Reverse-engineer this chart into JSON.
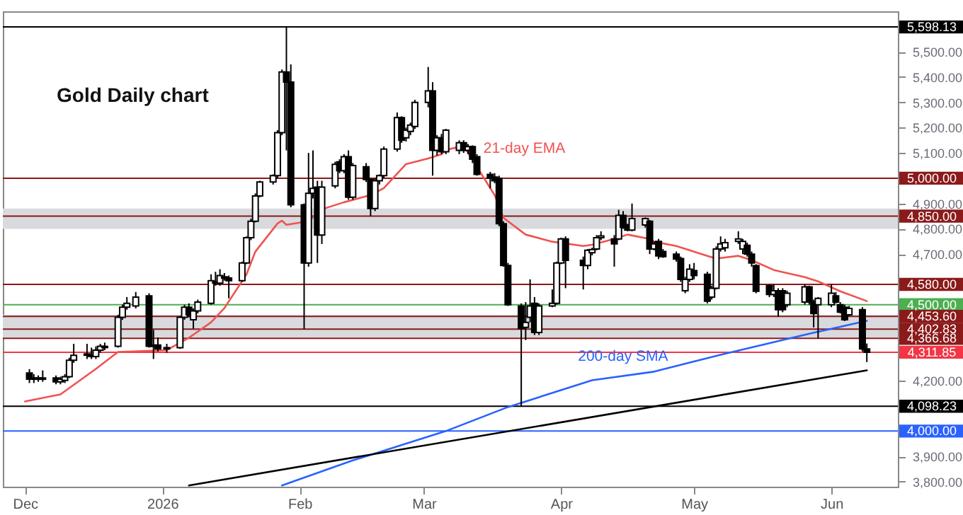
{
  "chart_data": {
    "type": "candlestick",
    "title": "Gold Daily chart",
    "xlim": [
      "2025-11-26",
      "2026-06-16"
    ],
    "xticks": [
      {
        "value": "2025-12-01",
        "label": "Dec"
      },
      {
        "value": "2026-01-01",
        "label": "2026"
      },
      {
        "value": "2026-02-01",
        "label": "Feb"
      },
      {
        "value": "2026-03-01",
        "label": "Mar"
      },
      {
        "value": "2026-04-01",
        "label": "Apr"
      },
      {
        "value": "2026-05-01",
        "label": "May"
      },
      {
        "value": "2026-06-01",
        "label": "Jun"
      }
    ],
    "ylim": [
      3780,
      5660
    ],
    "yticks": [
      {
        "value": 3800,
        "label": "3,800.00"
      },
      {
        "value": 3900,
        "label": "3,900.00"
      },
      {
        "value": 4200,
        "label": "4,200.00"
      },
      {
        "value": 4700,
        "label": "4,700.00"
      },
      {
        "value": 4800,
        "label": "4,800.00"
      },
      {
        "value": 4900,
        "label": "4,900.00"
      },
      {
        "value": 5100,
        "label": "5,100.00"
      },
      {
        "value": 5200,
        "label": "5,200.00"
      },
      {
        "value": 5300,
        "label": "5,300.00"
      },
      {
        "value": 5400,
        "label": "5,400.00"
      },
      {
        "value": 5500,
        "label": "5,500.00"
      }
    ],
    "x": [
      "2025-12-02",
      "2025-12-03",
      "2025-12-04",
      "2025-12-05",
      "2025-12-08",
      "2025-12-09",
      "2025-12-10",
      "2025-12-11",
      "2025-12-12",
      "2025-12-15",
      "2025-12-16",
      "2025-12-17",
      "2025-12-18",
      "2025-12-19",
      "2025-12-22",
      "2025-12-23",
      "2025-12-24",
      "2025-12-26",
      "2025-12-29",
      "2025-12-30",
      "2025-12-31",
      "2026-01-02",
      "2026-01-05",
      "2026-01-06",
      "2026-01-07",
      "2026-01-08",
      "2026-01-09",
      "2026-01-12",
      "2026-01-13",
      "2026-01-14",
      "2026-01-15",
      "2026-01-16",
      "2026-01-19",
      "2026-01-20",
      "2026-01-21",
      "2026-01-22",
      "2026-01-23",
      "2026-01-26",
      "2026-01-27",
      "2026-01-28",
      "2026-01-29",
      "2026-01-30",
      "2026-02-02",
      "2026-02-03",
      "2026-02-04",
      "2026-02-05",
      "2026-02-06",
      "2026-02-09",
      "2026-02-10",
      "2026-02-11",
      "2026-02-12",
      "2026-02-13",
      "2026-02-16",
      "2026-02-17",
      "2026-02-18",
      "2026-02-19",
      "2026-02-20",
      "2026-02-23",
      "2026-02-24",
      "2026-02-25",
      "2026-02-26",
      "2026-02-27",
      "2026-03-02",
      "2026-03-03",
      "2026-03-04",
      "2026-03-05",
      "2026-03-06",
      "2026-03-09",
      "2026-03-10",
      "2026-03-11",
      "2026-03-12",
      "2026-03-13",
      "2026-03-16",
      "2026-03-17",
      "2026-03-18",
      "2026-03-19",
      "2026-03-20",
      "2026-03-23",
      "2026-03-24",
      "2026-03-25",
      "2026-03-26",
      "2026-03-27",
      "2026-03-30",
      "2026-03-31",
      "2026-04-01",
      "2026-04-02",
      "2026-04-06",
      "2026-04-07",
      "2026-04-08",
      "2026-04-09",
      "2026-04-10",
      "2026-04-13",
      "2026-04-14",
      "2026-04-15",
      "2026-04-16",
      "2026-04-17",
      "2026-04-20",
      "2026-04-21",
      "2026-04-22",
      "2026-04-23",
      "2026-04-24",
      "2026-04-27",
      "2026-04-28",
      "2026-04-29",
      "2026-04-30",
      "2026-05-01",
      "2026-05-04",
      "2026-05-05",
      "2026-05-06",
      "2026-05-07",
      "2026-05-08",
      "2026-05-11",
      "2026-05-12",
      "2026-05-13",
      "2026-05-14",
      "2026-05-15",
      "2026-05-18",
      "2026-05-19",
      "2026-05-20",
      "2026-05-21",
      "2026-05-22",
      "2026-05-26",
      "2026-05-27",
      "2026-05-28",
      "2026-05-29",
      "2026-06-01",
      "2026-06-02",
      "2026-06-03",
      "2026-06-04",
      "2026-06-05",
      "2026-06-08",
      "2026-06-09"
    ],
    "ohlc": [
      [
        4230,
        4245,
        4190,
        4205
      ],
      [
        4205,
        4225,
        4190,
        4210
      ],
      [
        4210,
        4220,
        4195,
        4205
      ],
      [
        4205,
        4240,
        4195,
        4210
      ],
      [
        4210,
        4220,
        4185,
        4195
      ],
      [
        4195,
        4215,
        4185,
        4205
      ],
      [
        4200,
        4225,
        4190,
        4215
      ],
      [
        4215,
        4290,
        4210,
        4280
      ],
      [
        4280,
        4345,
        4270,
        4300
      ],
      [
        4300,
        4345,
        4285,
        4305
      ],
      [
        4300,
        4330,
        4285,
        4295
      ],
      [
        4295,
        4335,
        4285,
        4320
      ],
      [
        4320,
        4345,
        4310,
        4335
      ],
      [
        4335,
        4350,
        4320,
        4330
      ],
      [
        4335,
        4460,
        4330,
        4450
      ],
      [
        4450,
        4500,
        4440,
        4490
      ],
      [
        4490,
        4530,
        4480,
        4505
      ],
      [
        4495,
        4550,
        4485,
        4530
      ],
      [
        4535,
        4545,
        4330,
        4335
      ],
      [
        4335,
        4400,
        4285,
        4340
      ],
      [
        4340,
        4370,
        4315,
        4325
      ],
      [
        4325,
        4345,
        4310,
        4330
      ],
      [
        4330,
        4455,
        4325,
        4450
      ],
      [
        4450,
        4500,
        4440,
        4490
      ],
      [
        4490,
        4505,
        4450,
        4460
      ],
      [
        4440,
        4485,
        4405,
        4475
      ],
      [
        4475,
        4520,
        4465,
        4510
      ],
      [
        4505,
        4620,
        4500,
        4595
      ],
      [
        4590,
        4630,
        4575,
        4585
      ],
      [
        4585,
        4640,
        4575,
        4615
      ],
      [
        4610,
        4625,
        4595,
        4605
      ],
      [
        4605,
        4615,
        4525,
        4595
      ],
      [
        4595,
        4670,
        4590,
        4665
      ],
      [
        4665,
        4770,
        4660,
        4765
      ],
      [
        4765,
        4840,
        4755,
        4830
      ],
      [
        4830,
        4940,
        4825,
        4930
      ],
      [
        4930,
        4990,
        4925,
        4985
      ],
      [
        4985,
        5015,
        4975,
        5010
      ],
      [
        5010,
        5190,
        5000,
        5180
      ],
      [
        5180,
        5430,
        5170,
        5420
      ],
      [
        5420,
        5598.13,
        5110,
        5380
      ],
      [
        5380,
        5450,
        4885,
        4895
      ],
      [
        4895,
        4900,
        4402.83,
        4665
      ],
      [
        4665,
        5100,
        4650,
        4940
      ],
      [
        4940,
        5110,
        4920,
        4960
      ],
      [
        4965,
        4990,
        4665,
        4775
      ],
      [
        4775,
        4990,
        4740,
        4965
      ],
      [
        4970,
        5065,
        4960,
        5055
      ],
      [
        5065,
        5075,
        5020,
        5030
      ],
      [
        5030,
        5095,
        5020,
        5085
      ],
      [
        5085,
        5110,
        4915,
        4925
      ],
      [
        4925,
        5060,
        4915,
        5050
      ],
      [
        5045,
        5060,
        4985,
        4995
      ],
      [
        4995,
        5000,
        4850,
        4880
      ],
      [
        4880,
        5000,
        4870,
        4990
      ],
      [
        4990,
        5015,
        4975,
        5010
      ],
      [
        5010,
        5125,
        5000,
        5115
      ],
      [
        5115,
        5260,
        5105,
        5240
      ],
      [
        5240,
        5245,
        5140,
        5150
      ],
      [
        5160,
        5200,
        5145,
        5190
      ],
      [
        5185,
        5220,
        5170,
        5210
      ],
      [
        5205,
        5310,
        5195,
        5300
      ],
      [
        5300,
        5440,
        5280,
        5345
      ],
      [
        5345,
        5380,
        5010,
        5110
      ],
      [
        5110,
        5170,
        5090,
        5160
      ],
      [
        5160,
        5175,
        5095,
        5105
      ],
      [
        5105,
        5195,
        5095,
        5190
      ],
      [
        5110,
        5150,
        5095,
        5140
      ],
      [
        5140,
        5150,
        5100,
        5110
      ],
      [
        5110,
        5135,
        5095,
        5125
      ],
      [
        5125,
        5130,
        5060,
        5075
      ],
      [
        5085,
        5095,
        5010,
        5015
      ],
      [
        5015,
        5025,
        4960,
        5000
      ],
      [
        5005,
        5020,
        4980,
        4990
      ],
      [
        5000,
        5010,
        4810,
        4820
      ],
      [
        4820,
        4830,
        4650,
        4655
      ],
      [
        4655,
        4665,
        4495,
        4500
      ],
      [
        4495,
        4505,
        4098.23,
        4405
      ],
      [
        4410,
        4510,
        4360,
        4430
      ],
      [
        4450,
        4600,
        4430,
        4495
      ],
      [
        4505,
        4530,
        4380,
        4390
      ],
      [
        4390,
        4505,
        4380,
        4495
      ],
      [
        4495,
        4560,
        4490,
        4505
      ],
      [
        4505,
        4670,
        4500,
        4665
      ],
      [
        4665,
        4765,
        4660,
        4760
      ],
      [
        4760,
        4770,
        4565,
        4675
      ],
      [
        4675,
        4690,
        4560,
        4655
      ],
      [
        4655,
        4720,
        4640,
        4715
      ],
      [
        4705,
        4725,
        4695,
        4718
      ],
      [
        4720,
        4775,
        4715,
        4765
      ],
      [
        4765,
        4790,
        4755,
        4772
      ],
      [
        4760,
        4775,
        4650,
        4740
      ],
      [
        4760,
        4875,
        4755,
        4853
      ],
      [
        4853,
        4870,
        4800,
        4805
      ],
      [
        4815,
        4820,
        4790,
        4795
      ],
      [
        4795,
        4900,
        4790,
        4840
      ],
      [
        4815,
        4845,
        4805,
        4840
      ],
      [
        4830,
        4835,
        4700,
        4720
      ],
      [
        4720,
        4750,
        4715,
        4740
      ],
      [
        4750,
        4760,
        4680,
        4693
      ],
      [
        4710,
        4720,
        4685,
        4690
      ],
      [
        4700,
        4710,
        4670,
        4680
      ],
      [
        4682,
        4690,
        4590,
        4600
      ],
      [
        4555,
        4610,
        4545,
        4600
      ],
      [
        4600,
        4660,
        4590,
        4640
      ],
      [
        4635,
        4665,
        4600,
        4615
      ],
      [
        4620,
        4630,
        4505,
        4514
      ],
      [
        4530,
        4575,
        4520,
        4565
      ],
      [
        4565,
        4730,
        4560,
        4720
      ],
      [
        4720,
        4770,
        4710,
        4740
      ],
      [
        4725,
        4760,
        4710,
        4745
      ],
      [
        4750,
        4790,
        4740,
        4760
      ],
      [
        4720,
        4760,
        4700,
        4750
      ],
      [
        4735,
        4745,
        4690,
        4700
      ],
      [
        4700,
        4710,
        4650,
        4665
      ],
      [
        4654,
        4660,
        4545,
        4553
      ],
      [
        4575,
        4580,
        4530,
        4540
      ],
      [
        4540,
        4580,
        4530,
        4555
      ],
      [
        4555,
        4565,
        4453.6,
        4480
      ],
      [
        4555,
        4565,
        4470,
        4480
      ],
      [
        4500,
        4555,
        4490,
        4545
      ],
      [
        4510,
        4580,
        4500,
        4570
      ],
      [
        4570,
        4575,
        4500,
        4510
      ],
      [
        4510,
        4520,
        4410,
        4465
      ],
      [
        4500,
        4530,
        4366.68,
        4525
      ],
      [
        4500,
        4580,
        4490,
        4545
      ],
      [
        4535,
        4550,
        4505,
        4510
      ],
      [
        4500,
        4510,
        4465,
        4470
      ],
      [
        4490,
        4500,
        4435,
        4440
      ],
      [
        4460,
        4495,
        4455,
        4485
      ],
      [
        4480,
        4490,
        4315,
        4325
      ],
      [
        4325,
        4346,
        4273,
        4311.85
      ]
    ],
    "series": [
      {
        "type": "line",
        "name": "21-day EMA",
        "color": "#ef5350",
        "x": [
          "2025-12-01",
          "2025-12-09",
          "2025-12-17",
          "2025-12-22",
          "2026-01-02",
          "2026-01-07",
          "2026-01-12",
          "2026-01-15",
          "2026-01-20",
          "2026-01-22",
          "2026-01-27",
          "2026-01-28",
          "2026-01-29",
          "2026-02-03",
          "2026-02-06",
          "2026-02-11",
          "2026-02-17",
          "2026-02-20",
          "2026-02-25",
          "2026-03-02",
          "2026-03-05",
          "2026-03-06",
          "2026-03-10",
          "2026-03-13",
          "2026-03-17",
          "2026-03-19",
          "2026-03-24",
          "2026-03-30",
          "2026-04-06",
          "2026-04-08",
          "2026-04-13",
          "2026-04-16",
          "2026-04-21",
          "2026-04-22",
          "2026-04-27",
          "2026-05-04",
          "2026-05-06",
          "2026-05-11",
          "2026-05-14",
          "2026-05-19",
          "2026-05-26",
          "2026-05-29",
          "2026-06-03",
          "2026-06-09"
        ],
        "values": [
          4117,
          4145,
          4246,
          4313,
          4320,
          4369,
          4430,
          4486,
          4620,
          4710,
          4821,
          4832,
          4816,
          4830,
          4877,
          4905,
          4933,
          4961,
          5056,
          5078,
          5095,
          5112,
          5128,
          5045,
          4933,
          4843,
          4777,
          4749,
          4732,
          4737,
          4760,
          4777,
          4760,
          4749,
          4732,
          4693,
          4682,
          4693,
          4676,
          4637,
          4609,
          4592,
          4553,
          4514
        ]
      },
      {
        "type": "line",
        "name": "200-day SMA",
        "color": "#2962ff",
        "x": [
          "2026-01-28",
          "2026-02-13",
          "2026-03-06",
          "2026-03-20",
          "2026-04-08",
          "2026-04-22",
          "2026-05-07",
          "2026-05-27",
          "2026-06-09"
        ],
        "values": [
          3785,
          3884,
          4000,
          4095,
          4201,
          4235,
          4302,
          4385,
          4436
        ]
      },
      {
        "type": "line",
        "color": "#000000",
        "x": [
          "2026-01-07",
          "2026-06-09"
        ],
        "values": [
          3785,
          4240
        ]
      }
    ],
    "ref_lines": [
      {
        "axis": "y",
        "value": 5598.13,
        "label": "5,598.13",
        "color": "#000000"
      },
      {
        "axis": "y",
        "value": 5000,
        "label": "5,000.00",
        "color": "#8b1a1a"
      },
      {
        "axis": "y",
        "value": 4850,
        "label": "4,850.00",
        "color": "#8b1a1a"
      },
      {
        "axis": "y",
        "value": 4580,
        "label": "4,580.00",
        "color": "#8b1a1a"
      },
      {
        "axis": "y",
        "value": 4500,
        "label": "4,500.00",
        "color": "#4caf50"
      },
      {
        "axis": "y",
        "value": 4453.6,
        "label": "4,453.60",
        "color": "#8b1a1a"
      },
      {
        "axis": "y",
        "value": 4402.83,
        "label": "4,402.83",
        "color": "#8b1a1a"
      },
      {
        "axis": "y",
        "value": 4366.68,
        "label": "4,366.68",
        "color": "#8b1a1a"
      },
      {
        "axis": "y",
        "value": 4311.85,
        "label": "4,311.85",
        "color": "#f23645"
      },
      {
        "axis": "y",
        "value": 4098.23,
        "label": "4,098.23",
        "color": "#000000"
      },
      {
        "axis": "y",
        "value": 4000,
        "label": "4,000.00",
        "color": "#2962ff"
      }
    ],
    "bands": [
      {
        "axis": "y",
        "from": 4800,
        "to": 4880,
        "color": "#d9dadd"
      },
      {
        "axis": "y",
        "from": 4370,
        "to": 4460,
        "color": "#d9dadd"
      }
    ]
  }
}
